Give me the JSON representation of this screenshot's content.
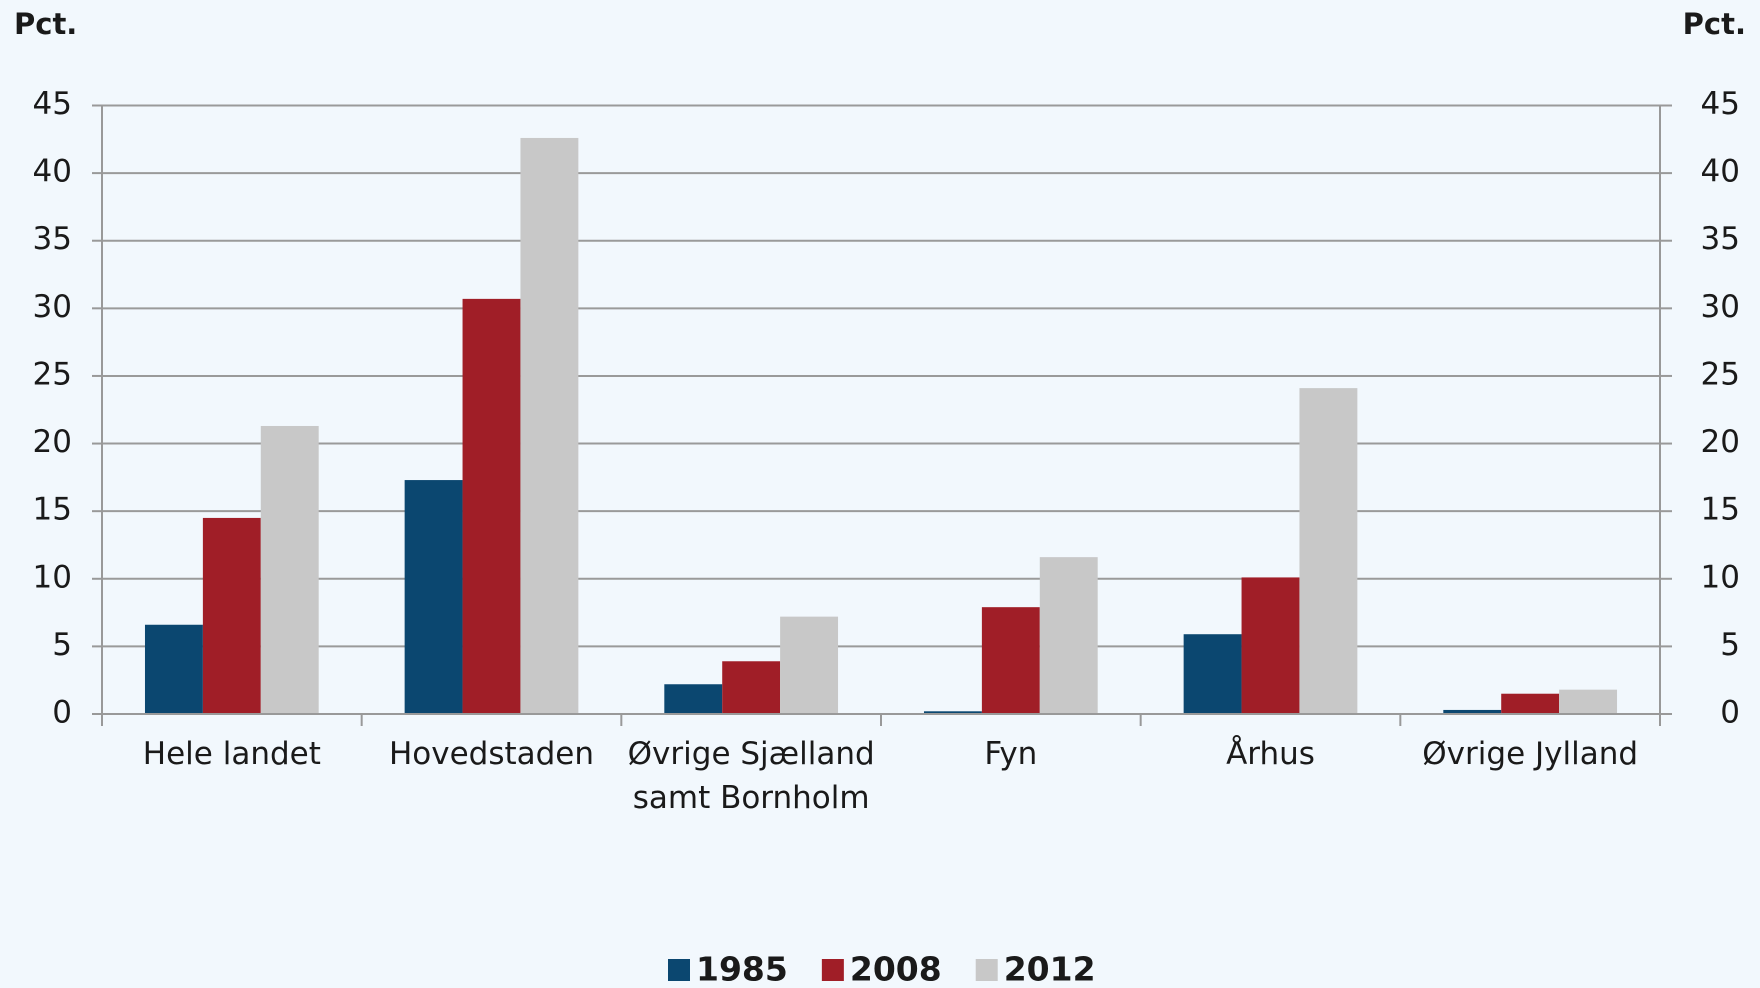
{
  "chart_data": {
    "type": "bar",
    "y_label": "Pct.",
    "y2_label": "Pct.",
    "categories": [
      "Hele landet",
      "Hovedstaden",
      "Øvrige Sjælland samt Bornholm",
      "Fyn",
      "Århus",
      "Øvrige Jylland"
    ],
    "series": [
      {
        "name": "1985",
        "color": "#0b4770",
        "values": [
          6.6,
          17.3,
          2.2,
          0.2,
          5.9,
          0.3
        ]
      },
      {
        "name": "2008",
        "color": "#a01e27",
        "values": [
          14.5,
          30.7,
          3.9,
          7.9,
          10.1,
          1.5
        ]
      },
      {
        "name": "2012",
        "color": "#c8c8c8",
        "values": [
          21.3,
          42.6,
          7.2,
          11.6,
          24.1,
          1.8
        ]
      }
    ],
    "ylim": [
      0,
      45
    ],
    "yticks": [
      0,
      5,
      10,
      15,
      20,
      25,
      30,
      35,
      40,
      45
    ],
    "y2lim": [
      0,
      45
    ],
    "y2ticks": [
      0,
      5,
      10,
      15,
      20,
      25,
      30,
      35,
      40,
      45
    ],
    "grid": true,
    "legend": "bottom"
  }
}
